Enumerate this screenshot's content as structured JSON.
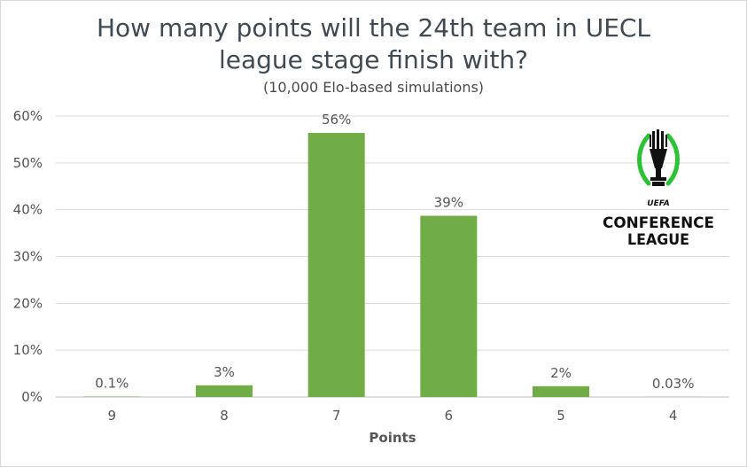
{
  "chart_data": {
    "type": "bar",
    "title_line1": "How many points will the 24th team in UECL",
    "title_line2": "league stage finish with?",
    "subtitle": "(10,000 Elo-based simulations)",
    "xlabel": "Points",
    "ylabel": "",
    "categories": [
      "9",
      "8",
      "7",
      "6",
      "5",
      "4"
    ],
    "values": [
      0.1,
      2.5,
      56.4,
      38.7,
      2.3,
      0.03
    ],
    "data_labels": [
      "0.1%",
      "3%",
      "56%",
      "39%",
      "2%",
      "0.03%"
    ],
    "yticks": [
      "0%",
      "10%",
      "20%",
      "30%",
      "40%",
      "50%",
      "60%"
    ],
    "ylim": [
      0,
      60
    ],
    "grid": true,
    "bar_color": "#70ad47",
    "legend": "none"
  },
  "logo": {
    "line1": "UEFA",
    "line2": "CONFERENCE",
    "line3": "LEAGUE",
    "accent": "#2bc236"
  }
}
